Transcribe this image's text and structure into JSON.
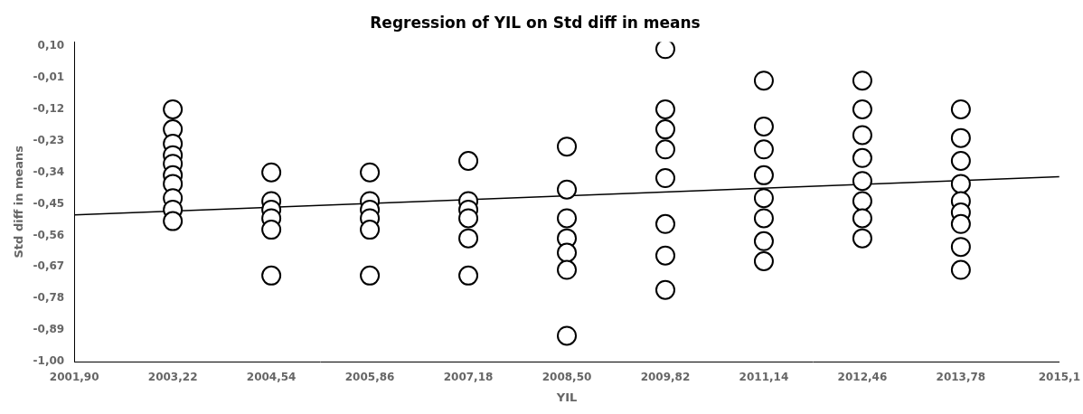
{
  "chart_data": {
    "type": "scatter",
    "title": "Regression of YIL on Std diff in means",
    "xlabel": "YIL",
    "ylabel": "Std diff in means",
    "xlim": [
      2001.9,
      2015.1
    ],
    "ylim": [
      -1.0,
      0.115
    ],
    "xticks": [
      {
        "value": 2001.9,
        "label": "2001,90"
      },
      {
        "value": 2003.22,
        "label": "2003,22"
      },
      {
        "value": 2004.54,
        "label": "2004,54"
      },
      {
        "value": 2005.86,
        "label": "2005,86"
      },
      {
        "value": 2007.18,
        "label": "2007,18"
      },
      {
        "value": 2008.5,
        "label": "2008,50"
      },
      {
        "value": 2009.82,
        "label": "2009,82"
      },
      {
        "value": 2011.14,
        "label": "2011,14"
      },
      {
        "value": 2012.46,
        "label": "2012,46"
      },
      {
        "value": 2013.78,
        "label": "2013,78"
      },
      {
        "value": 2015.1,
        "label": "2015,1"
      }
    ],
    "yticks": [
      {
        "value": 0.1,
        "label": "0,10"
      },
      {
        "value": -0.01,
        "label": "-0,01"
      },
      {
        "value": -0.12,
        "label": "-0,12"
      },
      {
        "value": -0.23,
        "label": "-0,23"
      },
      {
        "value": -0.34,
        "label": "-0,34"
      },
      {
        "value": -0.45,
        "label": "-0,45"
      },
      {
        "value": -0.56,
        "label": "-0,56"
      },
      {
        "value": -0.67,
        "label": "-0,67"
      },
      {
        "value": -0.78,
        "label": "-0,78"
      },
      {
        "value": -0.89,
        "label": "-0,89"
      },
      {
        "value": -1.0,
        "label": "-1,00"
      }
    ],
    "grid": false,
    "series": [
      {
        "type": "scatter",
        "marker": "circle",
        "color": "#000000",
        "x": [
          2003.22,
          2003.22,
          2003.22,
          2003.22,
          2003.22,
          2003.22,
          2003.22,
          2003.22,
          2003.22,
          2003.22,
          2004.54,
          2004.54,
          2004.54,
          2004.54,
          2004.54,
          2004.54,
          2005.86,
          2005.86,
          2005.86,
          2005.86,
          2005.86,
          2005.86,
          2007.18,
          2007.18,
          2007.18,
          2007.18,
          2007.18,
          2007.18,
          2008.5,
          2008.5,
          2008.5,
          2008.5,
          2008.5,
          2008.5,
          2008.5,
          2009.82,
          2009.82,
          2009.82,
          2009.82,
          2009.82,
          2009.82,
          2009.82,
          2009.82,
          2011.14,
          2011.14,
          2011.14,
          2011.14,
          2011.14,
          2011.14,
          2011.14,
          2011.14,
          2012.46,
          2012.46,
          2012.46,
          2012.46,
          2012.46,
          2012.46,
          2012.46,
          2012.46,
          2013.78,
          2013.78,
          2013.78,
          2013.78,
          2013.78,
          2013.78,
          2013.78,
          2013.78,
          2013.78
        ],
        "values": [
          -0.12,
          -0.19,
          -0.24,
          -0.28,
          -0.31,
          -0.35,
          -0.38,
          -0.43,
          -0.47,
          -0.51,
          -0.34,
          -0.44,
          -0.47,
          -0.5,
          -0.54,
          -0.7,
          -0.34,
          -0.44,
          -0.47,
          -0.5,
          -0.54,
          -0.7,
          -0.3,
          -0.44,
          -0.47,
          -0.5,
          -0.57,
          -0.7,
          -0.25,
          -0.4,
          -0.5,
          -0.57,
          -0.62,
          -0.68,
          -0.91,
          0.09,
          -0.12,
          -0.19,
          -0.26,
          -0.36,
          -0.52,
          -0.63,
          -0.75,
          -0.02,
          -0.18,
          -0.26,
          -0.35,
          -0.43,
          -0.5,
          -0.58,
          -0.65,
          -0.02,
          -0.12,
          -0.21,
          -0.29,
          -0.37,
          -0.44,
          -0.5,
          -0.57,
          -0.12,
          -0.22,
          -0.3,
          -0.38,
          -0.44,
          -0.48,
          -0.52,
          -0.6,
          -0.68
        ]
      },
      {
        "type": "line",
        "color": "#000000",
        "x": [
          2001.9,
          2015.1
        ],
        "values": [
          -0.488,
          -0.355
        ]
      }
    ]
  }
}
